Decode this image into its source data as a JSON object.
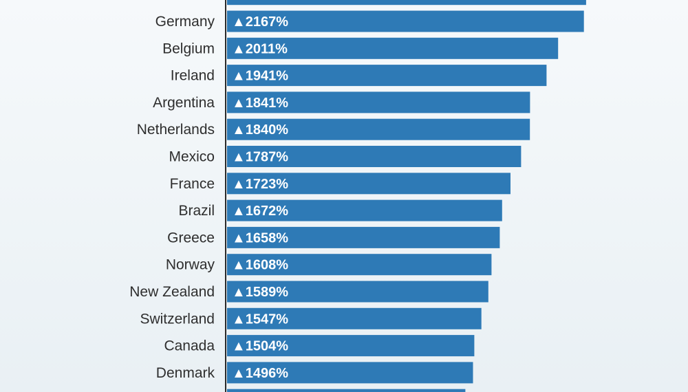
{
  "colors": {
    "bar": "#2e7ab6",
    "axis": "#2a2a2a",
    "label": "#2e2e2e",
    "value_text": "#ffffff"
  },
  "chart_data": {
    "type": "bar",
    "orientation": "horizontal",
    "title": "",
    "xlabel": "",
    "ylabel": "",
    "value_prefix": "▲",
    "value_suffix": "%",
    "grid": false,
    "legend": "none",
    "xlim": [
      0,
      2200
    ],
    "partially_visible_top_bar": {
      "value": 2180
    },
    "partially_visible_bottom_bar": {
      "value": 1450
    },
    "categories": [
      "Germany",
      "Belgium",
      "Ireland",
      "Argentina",
      "Netherlands",
      "Mexico",
      "France",
      "Brazil",
      "Greece",
      "Norway",
      "New Zealand",
      "Switzerland",
      "Canada",
      "Denmark"
    ],
    "values": [
      2167,
      2011,
      1941,
      1841,
      1840,
      1787,
      1723,
      1672,
      1658,
      1608,
      1589,
      1547,
      1504,
      1496
    ]
  }
}
